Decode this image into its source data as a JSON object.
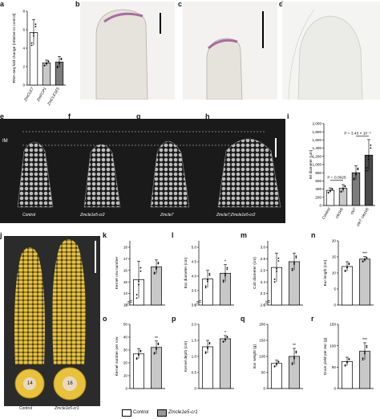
{
  "panel_letters": {
    "a": "a",
    "b": "b",
    "c": "c",
    "d": "d",
    "e": "e",
    "f": "f",
    "g": "g",
    "h": "h",
    "i": "i",
    "j": "j",
    "k": "k",
    "l": "l",
    "m": "m",
    "n": "n",
    "o": "o",
    "p": "p",
    "q": "q",
    "r": "r"
  },
  "im_label": "IM",
  "ear_labels": [
    "Control",
    "Zmcle1e5-cr2",
    "Zmcle7",
    "Zmcle7;Zmcle1e5-cr2"
  ],
  "ear_cross_numbers": [
    "14",
    "16"
  ],
  "ear_j_labels": [
    "Control",
    "Zmcle1e5-cr1"
  ],
  "legend": {
    "control": "Control",
    "mutant": "Zmcle1e5-cr1"
  },
  "chart_data": [
    {
      "id": "a",
      "type": "bar",
      "categories": [
        "ZmCLE7",
        "ZmFCP1",
        "ZmCLE1E5"
      ],
      "values": [
        5.7,
        2.4,
        2.5
      ],
      "errors": [
        1.4,
        0.3,
        0.6
      ],
      "ylabel": "RNA-seq fold change (relative to control)",
      "ylim": [
        0,
        8
      ],
      "yticks": [
        "0",
        "2",
        "4",
        "6",
        "8"
      ]
    },
    {
      "id": "i",
      "type": "bar",
      "categories": [
        "Control",
        "cle1e5",
        "cle7",
        "cle7; cle1e5"
      ],
      "values": [
        370,
        420,
        800,
        1230
      ],
      "errors": [
        60,
        90,
        170,
        380
      ],
      "ylabel": "IM diameter (μm)",
      "ylim": [
        0,
        2000
      ],
      "yticks": [
        "0",
        "200",
        "400",
        "600",
        "800",
        "1,000",
        "1,200",
        "1,400",
        "1,600",
        "1,800",
        "2,000"
      ],
      "annotations": [
        "P = 0.0025",
        "P = 3.43 × 10⁻⁴"
      ]
    },
    {
      "id": "k",
      "type": "bar",
      "categories": [
        "Control",
        "Zmcle1e5-cr1"
      ],
      "values": [
        15.2,
        16.3
      ],
      "errors": [
        1.6,
        0.6
      ],
      "ylabel": "Kernel row number",
      "ylim": [
        13,
        18
      ],
      "yticks": [
        "0",
        "13",
        "14",
        "15",
        "16",
        "17",
        "18"
      ],
      "break": true,
      "sig": ""
    },
    {
      "id": "l",
      "type": "bar",
      "categories": [
        "Control",
        "Zmcle1e5-cr1"
      ],
      "values": [
        3.9,
        4.1
      ],
      "errors": [
        0.3,
        0.3
      ],
      "ylabel": "Ear diameter (cm)",
      "ylim": [
        3.0,
        5.0
      ],
      "yticks": [
        "0",
        "3.0",
        "3.5",
        "4.0",
        "4.5",
        "5.0"
      ],
      "break": true,
      "sig": "*"
    },
    {
      "id": "m",
      "type": "bar",
      "categories": [
        "Control",
        "Zmcle1e5-cr1"
      ],
      "values": [
        2.65,
        2.75
      ],
      "errors": [
        0.25,
        0.15
      ],
      "ylabel": "Cob diameter (cm)",
      "ylim": [
        2.0,
        3.0
      ],
      "yticks": [
        "0",
        "2.0",
        "2.2",
        "2.4",
        "2.6",
        "2.8",
        "3.0"
      ],
      "break": true,
      "sig": ""
    },
    {
      "id": "n",
      "type": "bar",
      "categories": [
        "Control",
        "Zmcle1e5-cr1"
      ],
      "values": [
        12,
        14.3
      ],
      "errors": [
        1.5,
        0.8
      ],
      "ylabel": "Ear length (cm)",
      "ylim": [
        0,
        20
      ],
      "yticks": [
        "0",
        "5",
        "10",
        "15",
        "20"
      ],
      "break": false,
      "sig": "***"
    },
    {
      "id": "o",
      "type": "bar",
      "categories": [
        "Control",
        "Zmcle1e5-cr1"
      ],
      "values": [
        27,
        32
      ],
      "errors": [
        4,
        5
      ],
      "ylabel": "Kernel number per row",
      "ylim": [
        0,
        50
      ],
      "yticks": [
        "0",
        "10",
        "20",
        "30",
        "40",
        "50"
      ],
      "break": false,
      "sig": "**"
    },
    {
      "id": "p",
      "type": "bar",
      "categories": [
        "Control",
        "Zmcle1e5-cr1"
      ],
      "values": [
        1.3,
        1.55
      ],
      "errors": [
        0.2,
        0.1
      ],
      "ylabel": "Kernel depth (cm)",
      "ylim": [
        0,
        2.0
      ],
      "yticks": [
        "0",
        "0.5",
        "1.0",
        "1.5",
        "2.0"
      ],
      "break": false,
      "sig": "*"
    },
    {
      "id": "q",
      "type": "bar",
      "categories": [
        "Control",
        "Zmcle1e5-cr1"
      ],
      "values": [
        78,
        100
      ],
      "errors": [
        10,
        25
      ],
      "ylabel": "Ear weight (g)",
      "ylim": [
        0,
        200
      ],
      "yticks": [
        "0",
        "50",
        "100",
        "150",
        "200"
      ],
      "break": false,
      "sig": "**"
    },
    {
      "id": "r",
      "type": "bar",
      "categories": [
        "Control",
        "Zmcle1e5-cr1"
      ],
      "values": [
        63,
        87
      ],
      "errors": [
        10,
        20
      ],
      "ylabel": "Grain yield per ear (g)",
      "ylim": [
        0,
        150
      ],
      "yticks": [
        "0",
        "50",
        "100",
        "150"
      ],
      "break": false,
      "sig": "***"
    }
  ]
}
